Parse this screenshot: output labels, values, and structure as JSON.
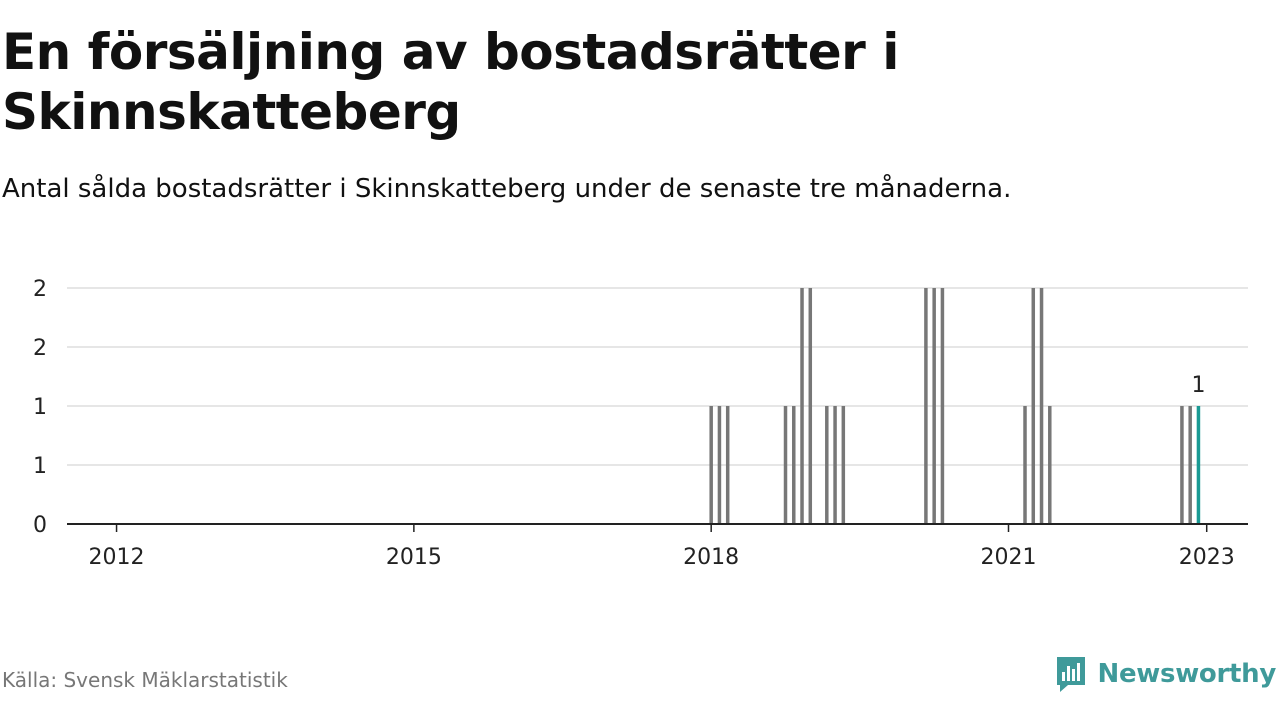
{
  "title": "En försäljning av bostadsrätter i Skinnskatteberg",
  "subtitle": "Antal sålda bostadsrätter i Skinnskatteberg under de senaste tre månaderna.",
  "source": "Källa: Svensk Mäklarstatistik",
  "brand": {
    "name": "Newsworthy",
    "color": "#3f9a9a",
    "icon": "newsworthy-logo-icon"
  },
  "colors": {
    "bar": "#777777",
    "highlight": "#1a9a94",
    "grid": "#dddddd",
    "axis": "#222222"
  },
  "chart_data": {
    "type": "bar",
    "title": "En försäljning av bostadsrätter i Skinnskatteberg",
    "xlabel": "",
    "ylabel": "",
    "x_ticks": [
      "2012",
      "2015",
      "2018",
      "2021",
      "2023"
    ],
    "y_tick_labels": [
      "0",
      "1",
      "1",
      "2",
      "2"
    ],
    "ylim": [
      0,
      2
    ],
    "grid": true,
    "x_range": [
      "2011-07",
      "2023-06"
    ],
    "series": [
      {
        "values": [
          {
            "x": "2018-01",
            "y": 1
          },
          {
            "x": "2018-02",
            "y": 1
          },
          {
            "x": "2018-03",
            "y": 1
          },
          {
            "x": "2018-10",
            "y": 1
          },
          {
            "x": "2018-11",
            "y": 1
          },
          {
            "x": "2018-12",
            "y": 2
          },
          {
            "x": "2019-01",
            "y": 2
          },
          {
            "x": "2019-03",
            "y": 1
          },
          {
            "x": "2019-04",
            "y": 1
          },
          {
            "x": "2019-05",
            "y": 1
          },
          {
            "x": "2020-03",
            "y": 2
          },
          {
            "x": "2020-04",
            "y": 2
          },
          {
            "x": "2020-05",
            "y": 2
          },
          {
            "x": "2021-03",
            "y": 1
          },
          {
            "x": "2021-04",
            "y": 2
          },
          {
            "x": "2021-05",
            "y": 2
          },
          {
            "x": "2021-06",
            "y": 1
          },
          {
            "x": "2022-10",
            "y": 1
          },
          {
            "x": "2022-11",
            "y": 1
          },
          {
            "x": "2022-12",
            "y": 1,
            "highlight": true
          }
        ]
      }
    ],
    "annotations": [
      {
        "x": "2022-12",
        "text": "1"
      }
    ]
  }
}
